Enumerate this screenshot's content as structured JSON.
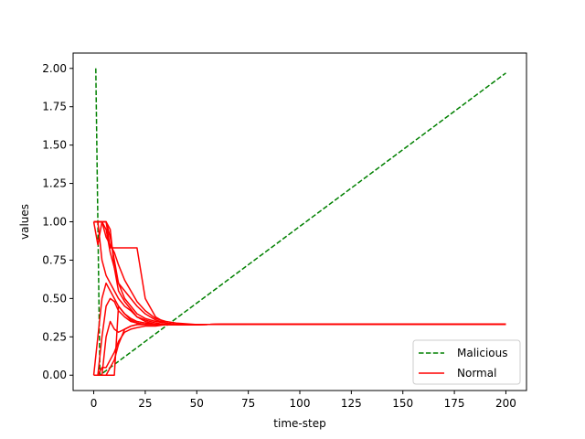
{
  "chart_data": {
    "type": "line",
    "xlabel": "time-step",
    "ylabel": "values",
    "xlim": [
      -10,
      210
    ],
    "ylim": [
      -0.1,
      2.1
    ],
    "xticks": [
      0,
      25,
      50,
      75,
      100,
      125,
      150,
      175,
      200
    ],
    "yticks": [
      0.0,
      0.25,
      0.5,
      0.75,
      1.0,
      1.25,
      1.5,
      1.75,
      2.0
    ],
    "xtick_labels": [
      "0",
      "25",
      "50",
      "75",
      "100",
      "125",
      "150",
      "175",
      "200"
    ],
    "ytick_labels": [
      "0.00",
      "0.25",
      "0.50",
      "0.75",
      "1.00",
      "1.25",
      "1.50",
      "1.75",
      "2.00"
    ],
    "grid": false,
    "legend": {
      "position": "lower-right",
      "entries": [
        {
          "label": "Malicious",
          "color": "#008000",
          "style": "dashed"
        },
        {
          "label": "Normal",
          "color": "#ff0000",
          "style": "solid"
        }
      ]
    },
    "series": [
      {
        "name": "Malicious",
        "color": "#008000",
        "style": "dashed",
        "x": [
          1,
          2,
          3,
          200
        ],
        "y": [
          2.0,
          1.0,
          0.0,
          1.97
        ]
      },
      {
        "name": "Normal",
        "color": "#ff0000",
        "style": "solid",
        "x": [
          0,
          2,
          4,
          6,
          8,
          10,
          12,
          15,
          18,
          21,
          25,
          30,
          35,
          40,
          50,
          75,
          100,
          150,
          200
        ],
        "y": [
          1.0,
          1.0,
          1.0,
          0.9,
          0.85,
          0.8,
          0.72,
          0.62,
          0.55,
          0.48,
          0.42,
          0.37,
          0.35,
          0.34,
          0.33,
          0.333,
          0.333,
          0.333,
          0.333
        ]
      },
      {
        "name": "Normal",
        "color": "#ff0000",
        "style": "solid",
        "x": [
          0,
          2,
          4,
          6,
          8,
          10,
          12,
          15,
          18,
          21,
          25,
          30,
          35,
          40,
          50,
          75,
          100,
          150,
          200
        ],
        "y": [
          1.0,
          0.85,
          1.0,
          1.0,
          0.95,
          0.7,
          0.6,
          0.55,
          0.5,
          0.45,
          0.4,
          0.36,
          0.34,
          0.33,
          0.33,
          0.333,
          0.333,
          0.333,
          0.333
        ]
      },
      {
        "name": "Normal",
        "color": "#ff0000",
        "style": "solid",
        "x": [
          0,
          2,
          4,
          6,
          8,
          10,
          12,
          15,
          18,
          21,
          25,
          30,
          35,
          40,
          50,
          75,
          100,
          150,
          200
        ],
        "y": [
          1.0,
          1.0,
          0.75,
          0.65,
          0.6,
          0.55,
          0.5,
          0.45,
          0.42,
          0.38,
          0.35,
          0.33,
          0.33,
          0.33,
          0.33,
          0.333,
          0.333,
          0.333,
          0.333
        ]
      },
      {
        "name": "Normal",
        "color": "#ff0000",
        "style": "solid",
        "x": [
          0,
          2,
          4,
          6,
          8,
          10,
          12,
          15,
          18,
          21,
          25,
          30,
          35,
          40,
          50,
          75,
          100,
          150,
          200
        ],
        "y": [
          1.0,
          1.0,
          1.0,
          0.95,
          0.8,
          0.7,
          0.55,
          0.48,
          0.43,
          0.38,
          0.36,
          0.34,
          0.33,
          0.33,
          0.33,
          0.333,
          0.333,
          0.333,
          0.333
        ]
      },
      {
        "name": "Normal",
        "color": "#ff0000",
        "style": "solid",
        "x": [
          0,
          2,
          4,
          6,
          8,
          10,
          12,
          15,
          18,
          21,
          25,
          30,
          35,
          40,
          50,
          75,
          100,
          150,
          200
        ],
        "y": [
          1.0,
          1.0,
          1.0,
          1.0,
          0.9,
          0.75,
          0.6,
          0.5,
          0.45,
          0.4,
          0.37,
          0.35,
          0.34,
          0.33,
          0.33,
          0.333,
          0.333,
          0.333,
          0.333
        ]
      },
      {
        "name": "Normal",
        "color": "#ff0000",
        "style": "solid",
        "x": [
          0,
          2,
          4,
          6,
          8,
          10,
          12,
          15,
          18,
          21,
          25,
          30,
          35,
          40,
          50,
          75,
          100,
          150,
          200
        ],
        "y": [
          1.0,
          1.0,
          1.0,
          1.0,
          0.83,
          0.83,
          0.83,
          0.83,
          0.83,
          0.83,
          0.5,
          0.38,
          0.34,
          0.33,
          0.33,
          0.333,
          0.333,
          0.333,
          0.333
        ]
      },
      {
        "name": "Normal",
        "color": "#ff0000",
        "style": "solid",
        "x": [
          0,
          2,
          4,
          6,
          8,
          10,
          12,
          15,
          18,
          21,
          25,
          30,
          35,
          40,
          50,
          75,
          100,
          150,
          200
        ],
        "y": [
          0.0,
          0.25,
          0.5,
          0.6,
          0.55,
          0.5,
          0.45,
          0.4,
          0.37,
          0.35,
          0.34,
          0.33,
          0.33,
          0.33,
          0.33,
          0.333,
          0.333,
          0.333,
          0.333
        ]
      },
      {
        "name": "Normal",
        "color": "#ff0000",
        "style": "solid",
        "x": [
          0,
          2,
          4,
          6,
          8,
          10,
          12,
          15,
          18,
          21,
          25,
          30,
          35,
          40,
          50,
          75,
          100,
          150,
          200
        ],
        "y": [
          0.0,
          0.0,
          0.25,
          0.45,
          0.5,
          0.48,
          0.42,
          0.38,
          0.35,
          0.34,
          0.33,
          0.33,
          0.33,
          0.33,
          0.33,
          0.333,
          0.333,
          0.333,
          0.333
        ]
      },
      {
        "name": "Normal",
        "color": "#ff0000",
        "style": "solid",
        "x": [
          0,
          2,
          4,
          6,
          8,
          10,
          12,
          15,
          18,
          21,
          25,
          30,
          35,
          40,
          50,
          75,
          100,
          150,
          200
        ],
        "y": [
          0.0,
          0.0,
          0.0,
          0.0,
          0.05,
          0.1,
          0.2,
          0.3,
          0.32,
          0.33,
          0.33,
          0.33,
          0.33,
          0.33,
          0.33,
          0.333,
          0.333,
          0.333,
          0.333
        ]
      },
      {
        "name": "Normal",
        "color": "#ff0000",
        "style": "solid",
        "x": [
          0,
          2,
          4,
          6,
          8,
          10,
          12,
          15,
          18,
          21,
          25,
          30,
          35,
          40,
          50,
          75,
          100,
          150,
          200
        ],
        "y": [
          0.0,
          0.0,
          0.05,
          0.05,
          0.1,
          0.15,
          0.22,
          0.28,
          0.3,
          0.31,
          0.32,
          0.32,
          0.33,
          0.33,
          0.33,
          0.333,
          0.333,
          0.333,
          0.333
        ]
      },
      {
        "name": "Normal",
        "color": "#ff0000",
        "style": "solid",
        "x": [
          0,
          2,
          4,
          6,
          8,
          10,
          12,
          15,
          18,
          21,
          25,
          30,
          35,
          40,
          50,
          75,
          100,
          150,
          200
        ],
        "y": [
          0.0,
          0.0,
          0.0,
          0.25,
          0.35,
          0.3,
          0.28,
          0.3,
          0.32,
          0.33,
          0.33,
          0.33,
          0.33,
          0.33,
          0.33,
          0.333,
          0.333,
          0.333,
          0.333
        ]
      },
      {
        "name": "Normal",
        "color": "#ff0000",
        "style": "solid",
        "x": [
          0,
          2,
          4,
          6,
          8,
          10,
          12,
          15,
          18,
          21,
          25,
          30,
          35,
          40,
          50,
          75,
          100,
          150,
          200
        ],
        "y": [
          0.0,
          0.0,
          0.0,
          0.0,
          0.0,
          0.0,
          0.45,
          0.4,
          0.36,
          0.34,
          0.33,
          0.33,
          0.33,
          0.33,
          0.33,
          0.333,
          0.333,
          0.333,
          0.333
        ]
      }
    ]
  }
}
